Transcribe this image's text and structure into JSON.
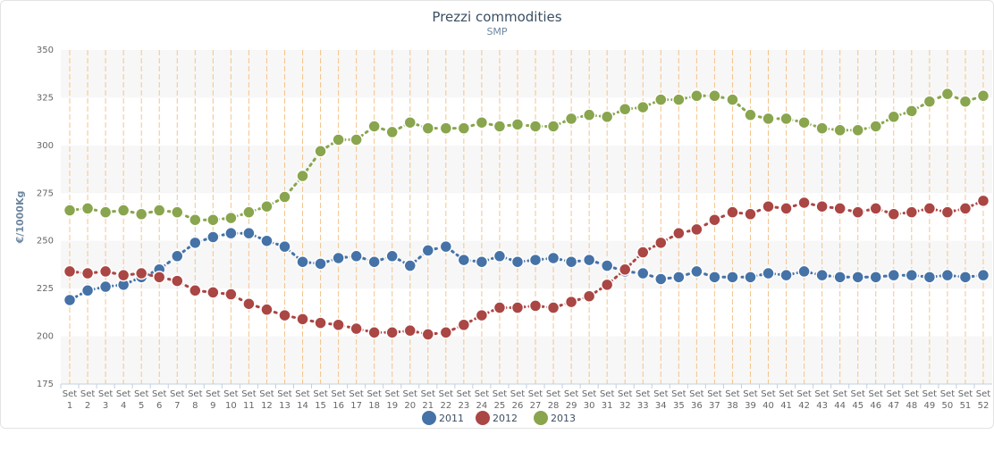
{
  "chart_data": {
    "type": "line",
    "title": "Prezzi commodities",
    "subtitle": "SMP",
    "ylabel": "€/1000Kg",
    "ylim": [
      175,
      350
    ],
    "yticks": [
      175,
      200,
      225,
      250,
      275,
      300,
      325,
      350
    ],
    "categories": [
      "Set 1",
      "Set 2",
      "Set 3",
      "Set 4",
      "Set 5",
      "Set 6",
      "Set 7",
      "Set 8",
      "Set 9",
      "Set 10",
      "Set 11",
      "Set 12",
      "Set 13",
      "Set 14",
      "Set 15",
      "Set 16",
      "Set 17",
      "Set 18",
      "Set 19",
      "Set 20",
      "Set 21",
      "Set 22",
      "Set 23",
      "Set 24",
      "Set 25",
      "Set 26",
      "Set 27",
      "Set 28",
      "Set 29",
      "Set 30",
      "Set 31",
      "Set 32",
      "Set 33",
      "Set 34",
      "Set 35",
      "Set 36",
      "Set 37",
      "Set 38",
      "Set 39",
      "Set 40",
      "Set 41",
      "Set 42",
      "Set 43",
      "Set 44",
      "Set 45",
      "Set 46",
      "Set 47",
      "Set 48",
      "Set 49",
      "Set 50",
      "Set 51",
      "Set 52"
    ],
    "series": [
      {
        "name": "2011",
        "color": "#4572a7",
        "values": [
          219,
          224,
          226,
          227,
          231,
          235,
          242,
          249,
          252,
          254,
          254,
          250,
          247,
          239,
          238,
          241,
          242,
          239,
          242,
          237,
          245,
          247,
          240,
          239,
          242,
          239,
          240,
          241,
          239,
          240,
          237,
          234,
          233,
          230,
          231,
          234,
          231,
          231,
          231,
          233,
          232,
          234,
          232,
          231,
          231,
          231,
          232,
          232,
          231,
          232,
          231,
          232
        ]
      },
      {
        "name": "2012",
        "color": "#aa4643",
        "values": [
          234,
          233,
          234,
          232,
          233,
          231,
          229,
          224,
          223,
          222,
          217,
          214,
          211,
          209,
          207,
          206,
          204,
          202,
          202,
          203,
          201,
          202,
          206,
          211,
          215,
          215,
          216,
          215,
          218,
          221,
          227,
          235,
          244,
          249,
          254,
          256,
          261,
          265,
          264,
          268,
          267,
          270,
          268,
          267,
          265,
          267,
          264,
          265,
          267,
          265,
          267,
          271
        ]
      },
      {
        "name": "2013",
        "color": "#89a54e",
        "values": [
          266,
          267,
          265,
          266,
          264,
          266,
          265,
          261,
          261,
          262,
          265,
          268,
          273,
          284,
          297,
          303,
          303,
          310,
          307,
          312,
          309,
          309,
          309,
          312,
          310,
          311,
          310,
          310,
          314,
          316,
          315,
          319,
          320,
          324,
          324,
          326,
          326,
          324,
          316,
          314,
          314,
          312,
          309,
          308,
          308,
          310,
          315,
          318,
          323,
          327,
          323,
          326
        ]
      }
    ],
    "legend": "bottom-center",
    "grid": true
  }
}
